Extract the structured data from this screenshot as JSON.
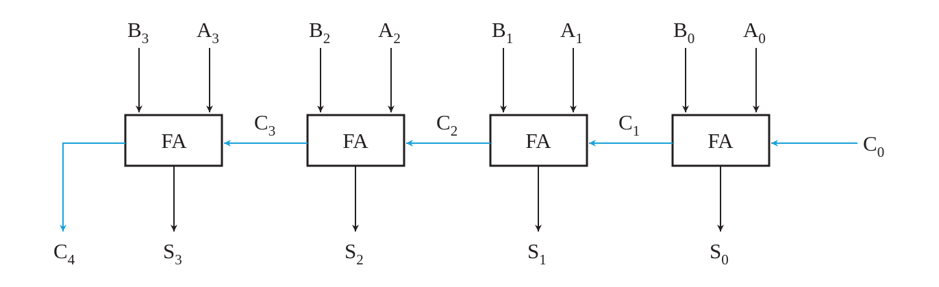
{
  "colors": {
    "line": "#231f20",
    "carry": "#1ba1db",
    "background": "#ffffff"
  },
  "blocks": [
    {
      "label": "FA",
      "b": {
        "main": "B",
        "sub": "3"
      },
      "a": {
        "main": "A",
        "sub": "3"
      },
      "s": {
        "main": "S",
        "sub": "3"
      }
    },
    {
      "label": "FA",
      "b": {
        "main": "B",
        "sub": "2"
      },
      "a": {
        "main": "A",
        "sub": "2"
      },
      "s": {
        "main": "S",
        "sub": "2"
      }
    },
    {
      "label": "FA",
      "b": {
        "main": "B",
        "sub": "1"
      },
      "a": {
        "main": "A",
        "sub": "1"
      },
      "s": {
        "main": "S",
        "sub": "1"
      }
    },
    {
      "label": "FA",
      "b": {
        "main": "B",
        "sub": "0"
      },
      "a": {
        "main": "A",
        "sub": "0"
      },
      "s": {
        "main": "S",
        "sub": "0"
      }
    }
  ],
  "carries": [
    {
      "main": "C",
      "sub": "3"
    },
    {
      "main": "C",
      "sub": "2"
    },
    {
      "main": "C",
      "sub": "1"
    }
  ],
  "carry_in": {
    "main": "C",
    "sub": "0"
  },
  "carry_out": {
    "main": "C",
    "sub": "4"
  }
}
